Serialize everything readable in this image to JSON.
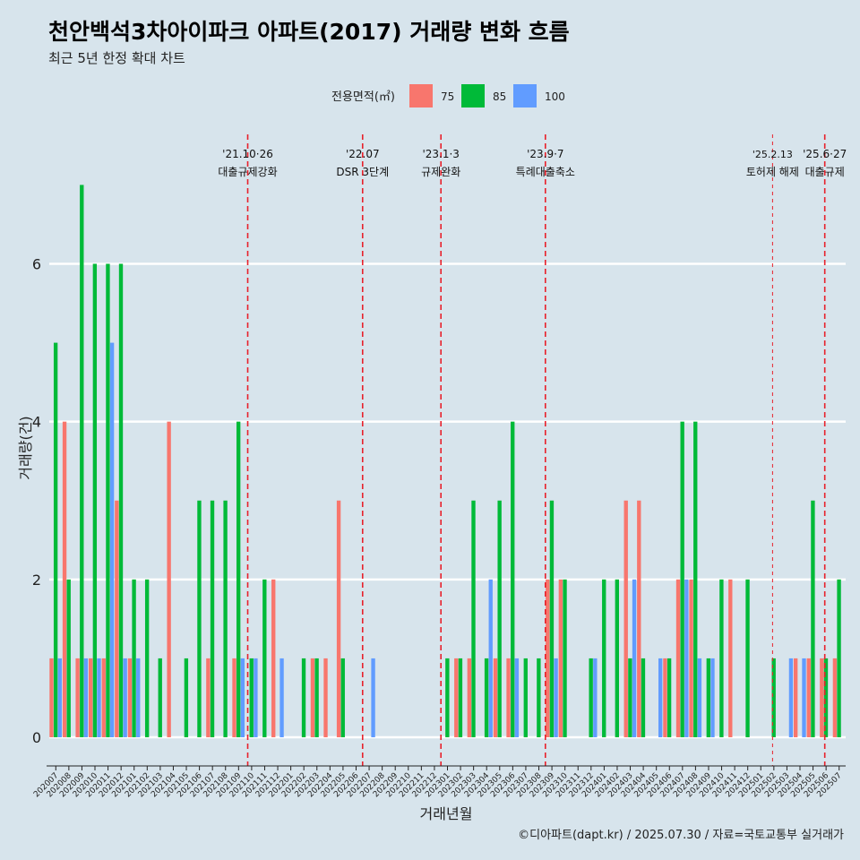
{
  "chart_data": {
    "type": "bar",
    "title": "천안백석3차아이파크 아파트(2017) 거래량 변화 흐름",
    "subtitle": "최근 5년 한정 확대 차트",
    "xlabel": "거래년월",
    "ylabel": "거래량(건)",
    "ylim": [
      0,
      7.2
    ],
    "yticks": [
      0,
      2,
      4,
      6
    ],
    "legend_title": "전용면적(㎡)",
    "legend_position": "top",
    "grid": true,
    "caption": "©디아파트(dapt.kr) / 2025.07.30 / 자료=국토교통부 실거래가",
    "categories": [
      "202007",
      "202008",
      "202009",
      "202010",
      "202011",
      "202012",
      "202101",
      "202102",
      "202103",
      "202104",
      "202105",
      "202106",
      "202107",
      "202108",
      "202109",
      "202110",
      "202111",
      "202112",
      "202201",
      "202202",
      "202203",
      "202204",
      "202205",
      "202206",
      "202207",
      "202208",
      "202209",
      "202210",
      "202211",
      "202212",
      "202301",
      "202302",
      "202303",
      "202304",
      "202305",
      "202306",
      "202307",
      "202308",
      "202309",
      "202310",
      "202311",
      "202312",
      "202401",
      "202402",
      "202403",
      "202404",
      "202405",
      "202406",
      "202407",
      "202408",
      "202409",
      "202410",
      "202411",
      "202412",
      "202501",
      "202502",
      "202503",
      "202504",
      "202505",
      "202506",
      "202507"
    ],
    "series": [
      {
        "name": "75",
        "color": "#f8766d",
        "values": [
          1,
          4,
          1,
          1,
          1,
          3,
          1,
          0,
          0,
          4,
          0,
          0,
          1,
          0,
          1,
          0,
          0,
          2,
          0,
          0,
          1,
          1,
          3,
          0,
          0,
          0,
          0,
          0,
          0,
          0,
          0,
          1,
          1,
          0,
          1,
          1,
          0,
          0,
          2,
          2,
          0,
          0,
          0,
          0,
          3,
          3,
          0,
          1,
          2,
          2,
          0,
          0,
          2,
          0,
          0,
          0,
          0,
          1,
          1,
          1,
          1
        ]
      },
      {
        "name": "85",
        "color": "#00ba38",
        "values": [
          5,
          2,
          7,
          6,
          6,
          6,
          2,
          2,
          1,
          0,
          1,
          3,
          3,
          3,
          4,
          1,
          2,
          0,
          0,
          1,
          1,
          0,
          1,
          0,
          0,
          0,
          0,
          0,
          0,
          0,
          1,
          1,
          3,
          1,
          3,
          4,
          1,
          1,
          3,
          2,
          0,
          1,
          2,
          2,
          1,
          1,
          0,
          1,
          4,
          4,
          1,
          2,
          0,
          2,
          0,
          1,
          0,
          0,
          3,
          1,
          2
        ]
      },
      {
        "name": "100",
        "color": "#619cff",
        "values": [
          1,
          0,
          1,
          1,
          5,
          1,
          1,
          0,
          0,
          0,
          0,
          0,
          0,
          0,
          1,
          1,
          0,
          1,
          0,
          0,
          0,
          0,
          0,
          0,
          1,
          0,
          0,
          0,
          0,
          0,
          0,
          0,
          0,
          2,
          0,
          1,
          0,
          0,
          1,
          0,
          0,
          1,
          0,
          0,
          2,
          0,
          1,
          0,
          2,
          1,
          1,
          0,
          0,
          0,
          0,
          0,
          1,
          1,
          0,
          0,
          0
        ]
      }
    ],
    "annotations": [
      {
        "at": 15.2,
        "date": "'21.10·26",
        "label": "대출규제강화",
        "style": "dashed"
      },
      {
        "at": 24.0,
        "date": "'22.07",
        "label": "DSR 3단계",
        "style": "dashed"
      },
      {
        "at": 30.0,
        "date": "'23.1·3",
        "label": "규제완화",
        "style": "dashed"
      },
      {
        "at": 38.0,
        "date": "'23.9·7",
        "label": "특례대출축소",
        "style": "dashed"
      },
      {
        "at": 55.4,
        "date": "'25.2.13",
        "label": "토허제 해제",
        "style": "thin"
      },
      {
        "at": 59.4,
        "date": "'25.6·27",
        "label": "대출규제",
        "style": "dashed"
      }
    ]
  }
}
